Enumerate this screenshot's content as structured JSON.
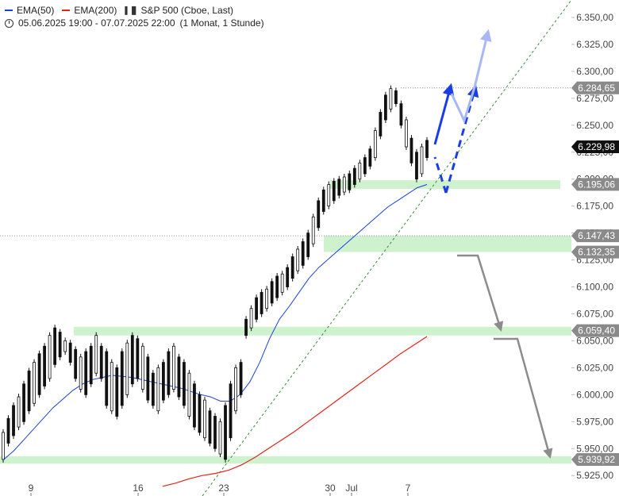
{
  "legend": {
    "ema50_label": "EMA(50)",
    "ema200_label": "EMA(200)",
    "symbol_label": "S&P 500 (Cboe, Last)",
    "range_label": "05.06.2025 19:00 - 07.07.2025 22:00",
    "interval_label": "(1 Monat, 1 Stunde)",
    "ema50_color": "#1a3ee6",
    "ema200_color": "#e3231a",
    "icons": [
      "clock-icon",
      "candles-icon"
    ]
  },
  "chart_data": {
    "type": "candlestick",
    "title": "S&P 500 (Cboe, Last)",
    "ylim": [
      5915,
      6360
    ],
    "y_ticks": [
      "6.350,00",
      "6.325,00",
      "6.300,00",
      "6.275,00",
      "6.250,00",
      "6.225,00",
      "6.200,00",
      "6.175,00",
      "6.150,00",
      "6.125,00",
      "6.100,00",
      "6.075,00",
      "6.050,00",
      "6.025,00",
      "6.000,00",
      "5.975,00",
      "5.950,00",
      "5.925,00"
    ],
    "x_tick_labels": [
      "9",
      "16",
      "23",
      "30",
      "Jul",
      "7"
    ],
    "price_series": [
      [
        5940,
        5965
      ],
      [
        5955,
        5978
      ],
      [
        5962,
        5990
      ],
      [
        5970,
        5998
      ],
      [
        5975,
        6010
      ],
      [
        5985,
        6022
      ],
      [
        5992,
        6030
      ],
      [
        6000,
        6038
      ],
      [
        6008,
        6045
      ],
      [
        6015,
        6055
      ],
      [
        6028,
        6062
      ],
      [
        6035,
        6058
      ],
      [
        6040,
        6050
      ],
      [
        6030,
        6048
      ],
      [
        6015,
        6042
      ],
      [
        6005,
        6035
      ],
      [
        6000,
        6040
      ],
      [
        6010,
        6045
      ],
      [
        6020,
        6055
      ],
      [
        6015,
        6045
      ],
      [
        5990,
        6040
      ],
      [
        5985,
        6030
      ],
      [
        5980,
        6025
      ],
      [
        5990,
        6040
      ],
      [
        6000,
        6048
      ],
      [
        6010,
        6055
      ],
      [
        6015,
        6052
      ],
      [
        6005,
        6045
      ],
      [
        5995,
        6035
      ],
      [
        5990,
        6020
      ],
      [
        5985,
        6025
      ],
      [
        5995,
        6030
      ],
      [
        6000,
        6040
      ],
      [
        6005,
        6045
      ],
      [
        5998,
        6035
      ],
      [
        5990,
        6030
      ],
      [
        5980,
        6020
      ],
      [
        5970,
        6010
      ],
      [
        5965,
        6000
      ],
      [
        5960,
        5995
      ],
      [
        5955,
        5985
      ],
      [
        5950,
        5980
      ],
      [
        5945,
        5975
      ],
      [
        5940,
        5990
      ],
      [
        5960,
        6010
      ],
      [
        5985,
        6025
      ],
      [
        6000,
        6030
      ],
      [
        6055,
        6070
      ],
      [
        6062,
        6080
      ],
      [
        6070,
        6090
      ],
      [
        6075,
        6095
      ],
      [
        6080,
        6098
      ],
      [
        6085,
        6105
      ],
      [
        6090,
        6110
      ],
      [
        6095,
        6112
      ],
      [
        6100,
        6118
      ],
      [
        6108,
        6128
      ],
      [
        6115,
        6135
      ],
      [
        6120,
        6142
      ],
      [
        6128,
        6150
      ],
      [
        6140,
        6165
      ],
      [
        6155,
        6180
      ],
      [
        6170,
        6190
      ],
      [
        6175,
        6195
      ],
      [
        6180,
        6198
      ],
      [
        6185,
        6200
      ],
      [
        6188,
        6202
      ],
      [
        6190,
        6205
      ],
      [
        6195,
        6210
      ],
      [
        6200,
        6215
      ],
      [
        6205,
        6220
      ],
      [
        6212,
        6228
      ],
      [
        6220,
        6245
      ],
      [
        6240,
        6262
      ],
      [
        6255,
        6278
      ],
      [
        6265,
        6284
      ],
      [
        6270,
        6282
      ],
      [
        6250,
        6270
      ],
      [
        6230,
        6255
      ],
      [
        6215,
        6238
      ],
      [
        6200,
        6225
      ],
      [
        6205,
        6230
      ],
      [
        6220,
        6236
      ]
    ],
    "series": [
      {
        "name": "EMA(50)",
        "color": "#1a3ee6",
        "values": [
          5940,
          5948,
          5958,
          5968,
          5978,
          5988,
          5996,
          6004,
          6010,
          6014,
          6016,
          6018,
          6017,
          6016,
          6014,
          6012,
          6010,
          6008,
          6006,
          6003,
          6000,
          5998,
          5994,
          5994,
          6000,
          6012,
          6030,
          6052,
          6070,
          6082,
          6095,
          6108,
          6118,
          6126,
          6134,
          6142,
          6150,
          6158,
          6166,
          6174,
          6180,
          6186,
          6192,
          6195
        ]
      },
      {
        "name": "EMA(200)",
        "color": "#e3231a",
        "values": [
          5915,
          5918,
          5922,
          5925,
          5927,
          5930,
          5935,
          5942,
          5950,
          5958,
          5966,
          5975,
          5984,
          5993,
          6002,
          6011,
          6020,
          6029,
          6038,
          6046,
          6054
        ]
      }
    ],
    "price_labels": [
      {
        "value": "6.284,65",
        "style": "grey"
      },
      {
        "value": "6.229,98",
        "style": "black"
      },
      {
        "value": "6.195,06",
        "style": "grey"
      },
      {
        "value": "6.147,43",
        "style": "grey"
      },
      {
        "value": "6.132,35",
        "style": "grey"
      },
      {
        "value": "6.059,40",
        "style": "grey"
      },
      {
        "value": "5.939,92",
        "style": "grey"
      }
    ],
    "support_zones": [
      {
        "from": 6191,
        "to": 6199
      },
      {
        "from": 6132.35,
        "to": 6147.43
      },
      {
        "from": 6055,
        "to": 6063
      },
      {
        "from": 5936,
        "to": 5943
      }
    ],
    "scenarios": [
      {
        "name": "bullish",
        "color": "#1a3ee6"
      },
      {
        "name": "bullish-extension",
        "color": "#a9b8f5"
      },
      {
        "name": "bearish",
        "color": "#8c8c8c"
      }
    ],
    "grid": false,
    "legend_position": "top-left"
  }
}
